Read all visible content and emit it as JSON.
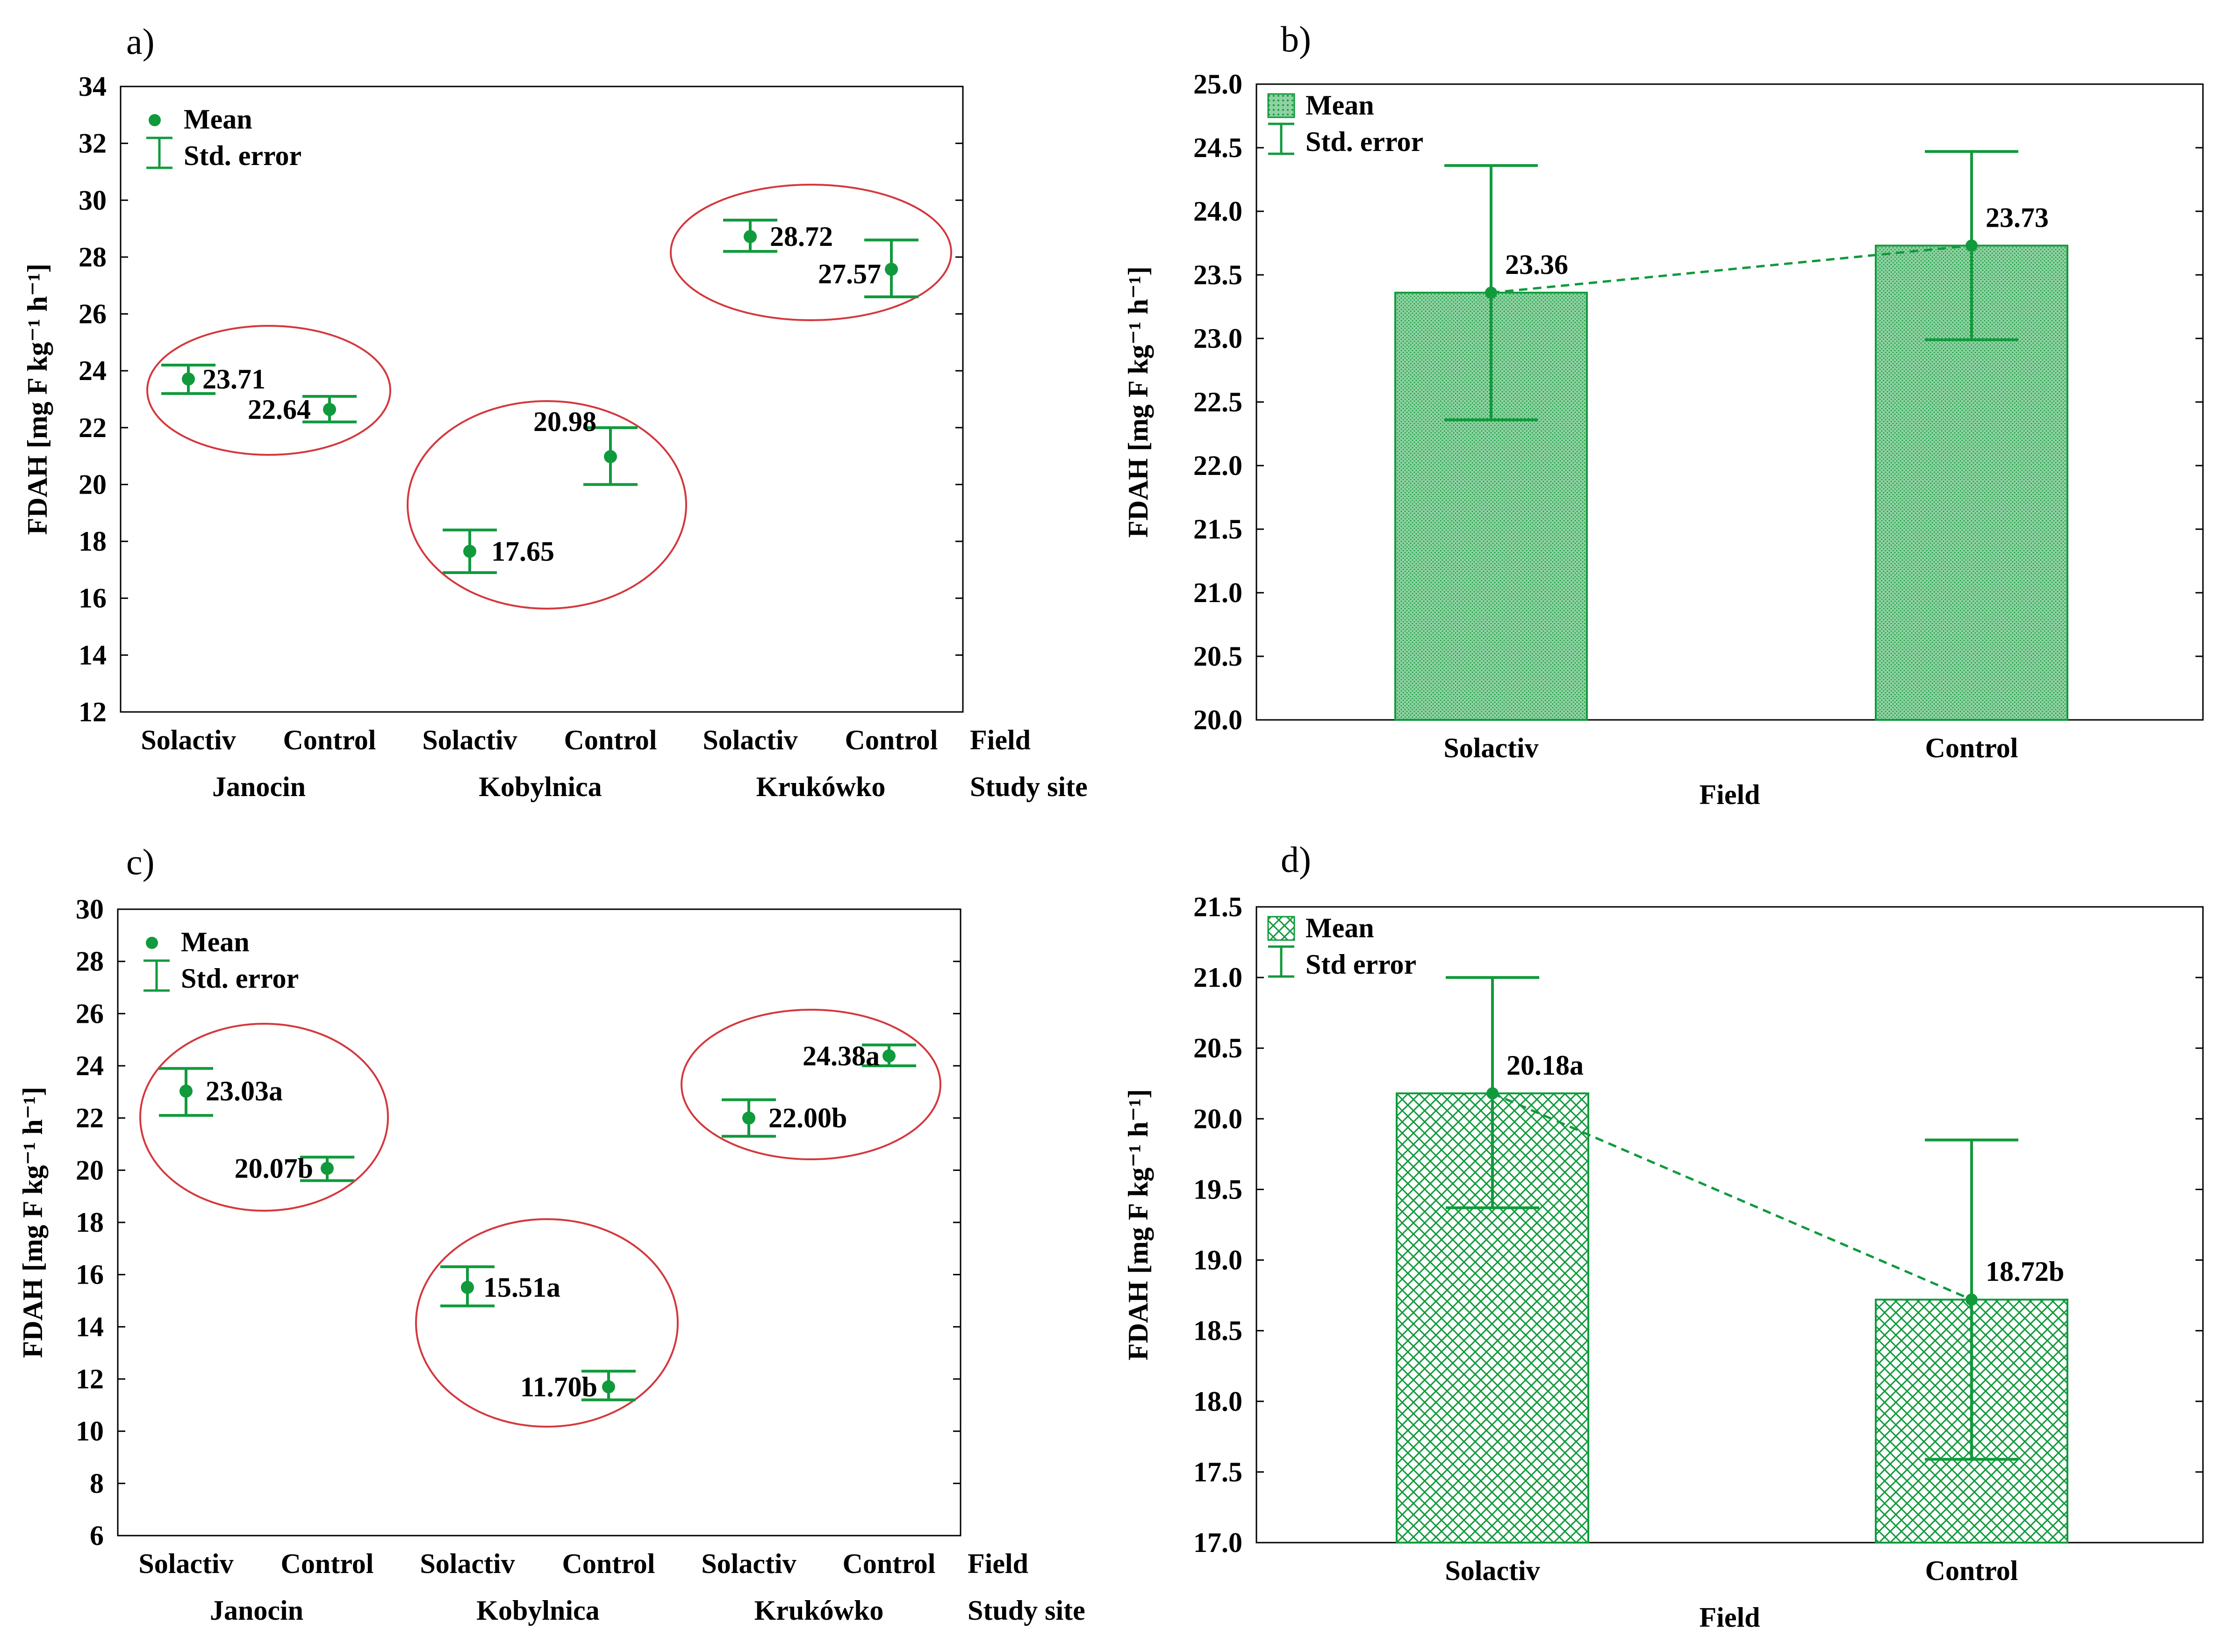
{
  "colors": {
    "series": "#109a3c",
    "ellipse": "#d4383d",
    "bar_fill": "#8fd1a2",
    "frame": "#000000"
  },
  "legend": {
    "mean": "Mean",
    "std_error": "Std. error",
    "std_error_d": "Std error"
  },
  "chart_data": [
    {
      "panel": "a)",
      "type": "scatter",
      "ylabel": "FDAH [mg F kg⁻¹ h⁻¹]",
      "ylim": [
        12,
        34
      ],
      "yticks": [
        "12",
        "14",
        "16",
        "18",
        "20",
        "22",
        "24",
        "26",
        "28",
        "30",
        "32",
        "34"
      ],
      "categories": [
        "Solactiv",
        "Control",
        "Solactiv",
        "Control",
        "Solactiv",
        "Control"
      ],
      "groups": [
        "Janocin",
        "Kobylnica",
        "Krukówko"
      ],
      "factor_labels": [
        "Field",
        "Study site"
      ],
      "mean": [
        23.71,
        22.64,
        17.65,
        20.98,
        28.72,
        27.57
      ],
      "lower": [
        23.2,
        22.2,
        16.9,
        20.0,
        28.2,
        26.6
      ],
      "upper": [
        24.2,
        23.1,
        18.4,
        22.0,
        29.3,
        28.6
      ],
      "labels": [
        "23.71",
        "22.64",
        "17.65",
        "20.98",
        "28.72",
        "27.57"
      ]
    },
    {
      "panel": "b)",
      "type": "bar",
      "ylabel": "FDAH [mg F kg⁻¹ h⁻¹]",
      "xlabel": "Field",
      "ylim": [
        20.0,
        25.0
      ],
      "yticks": [
        "20.0",
        "20.5",
        "21.0",
        "21.5",
        "22.0",
        "22.5",
        "23.0",
        "23.5",
        "24.0",
        "24.5",
        "25.0"
      ],
      "categories": [
        "Solactiv",
        "Control"
      ],
      "mean": [
        23.36,
        23.73
      ],
      "lower": [
        22.36,
        22.99
      ],
      "upper": [
        24.36,
        24.47
      ],
      "labels": [
        "23.36",
        "23.73"
      ]
    },
    {
      "panel": "c)",
      "type": "scatter",
      "ylabel": "FDAH [mg F kg⁻¹ h⁻¹]",
      "ylim": [
        6,
        30
      ],
      "yticks": [
        "6",
        "8",
        "10",
        "12",
        "14",
        "16",
        "18",
        "20",
        "22",
        "24",
        "26",
        "28",
        "30"
      ],
      "categories": [
        "Solactiv",
        "Control",
        "Solactiv",
        "Control",
        "Solactiv",
        "Control"
      ],
      "groups": [
        "Janocin",
        "Kobylnica",
        "Krukówko"
      ],
      "factor_labels": [
        "Field",
        "Study site"
      ],
      "mean": [
        23.03,
        20.07,
        15.51,
        11.7,
        22.0,
        24.38
      ],
      "lower": [
        22.1,
        19.6,
        14.8,
        11.2,
        21.3,
        24.0
      ],
      "upper": [
        23.9,
        20.5,
        16.3,
        12.3,
        22.7,
        24.8
      ],
      "labels": [
        "23.03a",
        "20.07b",
        "15.51a",
        "11.70b",
        "22.00b",
        "24.38a"
      ]
    },
    {
      "panel": "d)",
      "type": "bar",
      "ylabel": "FDAH [mg F kg⁻¹ h⁻¹]",
      "xlabel": "Field",
      "ylim": [
        17.0,
        21.5
      ],
      "yticks": [
        "17.0",
        "17.5",
        "18.0",
        "18.5",
        "19.0",
        "19.5",
        "20.0",
        "20.5",
        "21.0",
        "21.5"
      ],
      "categories": [
        "Solactiv",
        "Control"
      ],
      "mean": [
        20.18,
        18.72
      ],
      "lower": [
        19.37,
        17.59
      ],
      "upper": [
        21.0,
        19.85
      ],
      "labels": [
        "20.18a",
        "18.72b"
      ]
    }
  ]
}
